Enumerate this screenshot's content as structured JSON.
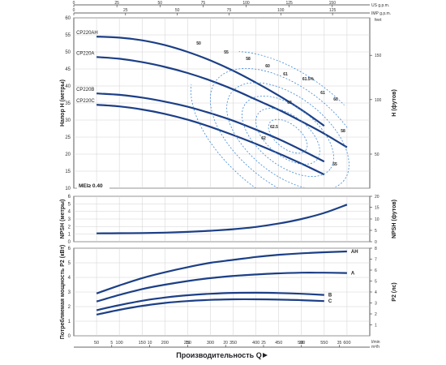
{
  "chart_data": {
    "type": "line",
    "x_axis": {
      "label": "Производительность Q",
      "unit_lmin": "l/min",
      "unit_m3h": "m³/h",
      "unit_usgpm": "US g.p.m.",
      "unit_impgpm": "IMP g.p.m.",
      "ticks_lmin": [
        "50",
        "100",
        "150",
        "200",
        "250",
        "300",
        "350",
        "400",
        "450",
        "500",
        "550",
        "600"
      ],
      "ticks_m3h": [
        "5",
        "10",
        "15",
        "20",
        "25",
        "30",
        "35"
      ],
      "ticks_usgpm": [
        "0",
        "25",
        "50",
        "75",
        "100",
        "125",
        "150"
      ],
      "ticks_impgpm": [
        "0",
        "25",
        "50",
        "75",
        "100",
        "125"
      ],
      "xlim": [
        0,
        650
      ]
    },
    "head": {
      "ylabel": "Напор H (метры)",
      "ylabel_right": "H (футов)",
      "unit_feet": "feet",
      "ylim": [
        10,
        60
      ],
      "ticks": [
        "10",
        "15",
        "20",
        "25",
        "30",
        "35",
        "40",
        "45",
        "50",
        "55",
        "60"
      ],
      "ticks_feet": [
        "50",
        "100",
        "150"
      ],
      "mei_label": "MEI≥ 0.40",
      "series": [
        {
          "name": "CP220AH",
          "x": [
            50,
            100,
            150,
            200,
            250,
            300,
            350,
            400,
            450,
            500,
            550
          ],
          "values": [
            54.5,
            54.2,
            53.4,
            52.0,
            50.0,
            47.5,
            44.5,
            41.0,
            37.2,
            33.0,
            28.3
          ]
        },
        {
          "name": "CP220A",
          "x": [
            50,
            100,
            150,
            200,
            250,
            300,
            350,
            400,
            450,
            500,
            550,
            600
          ],
          "values": [
            48.5,
            48.0,
            47.0,
            45.6,
            43.8,
            41.6,
            39.0,
            36.0,
            33.0,
            29.6,
            26.0,
            22.0
          ]
        },
        {
          "name": "CP220B",
          "x": [
            50,
            100,
            150,
            200,
            250,
            300,
            350,
            400,
            450,
            500,
            550
          ],
          "values": [
            37.8,
            37.4,
            36.6,
            35.4,
            33.9,
            32.0,
            29.8,
            27.2,
            24.4,
            21.2,
            17.8
          ]
        },
        {
          "name": "CP220C",
          "x": [
            50,
            100,
            150,
            200,
            250,
            300,
            350,
            400,
            450,
            500,
            550
          ],
          "values": [
            34.5,
            34.0,
            33.1,
            31.8,
            30.1,
            28.0,
            25.6,
            23.0,
            20.2,
            17.2,
            14.0
          ]
        }
      ],
      "efficiency_labels": [
        "50",
        "55",
        "58",
        "60",
        "61",
        "61.5%",
        "61",
        "60",
        "63",
        "62.5",
        "62",
        "58",
        "55"
      ]
    },
    "npsh": {
      "ylabel": "NPSH (метры)",
      "ylabel_right": "NPSH (футов)",
      "ylim": [
        0,
        6
      ],
      "ticks": [
        "0",
        "1",
        "2",
        "3",
        "4",
        "5",
        "6"
      ],
      "ticks_feet": [
        "0",
        "5",
        "10",
        "15",
        "20"
      ],
      "series": [
        {
          "name": "",
          "x": [
            50,
            100,
            150,
            200,
            250,
            300,
            350,
            400,
            450,
            500,
            550,
            600
          ],
          "values": [
            1.1,
            1.12,
            1.15,
            1.2,
            1.3,
            1.45,
            1.65,
            1.95,
            2.4,
            3.0,
            3.8,
            4.9
          ]
        }
      ]
    },
    "power": {
      "ylabel": "Потребляемая мощность P2 (кВт)",
      "ylabel_right": "P2 (лс)",
      "ylim": [
        0,
        6
      ],
      "ticks": [
        "0",
        "1",
        "2",
        "3",
        "4",
        "5",
        "6"
      ],
      "ticks_hp": [
        "1",
        "2",
        "3",
        "4",
        "5",
        "6",
        "7",
        "8"
      ],
      "series": [
        {
          "name": "AH",
          "x": [
            50,
            100,
            150,
            200,
            250,
            300,
            350,
            400,
            450,
            500,
            550,
            600
          ],
          "values": [
            2.9,
            3.45,
            3.95,
            4.35,
            4.7,
            5.0,
            5.2,
            5.4,
            5.55,
            5.65,
            5.72,
            5.78
          ]
        },
        {
          "name": "A",
          "x": [
            50,
            100,
            150,
            200,
            250,
            300,
            350,
            400,
            450,
            500,
            550,
            600
          ],
          "values": [
            2.35,
            2.8,
            3.2,
            3.5,
            3.75,
            3.95,
            4.1,
            4.2,
            4.28,
            4.32,
            4.32,
            4.3
          ]
        },
        {
          "name": "B",
          "x": [
            50,
            100,
            150,
            200,
            250,
            300,
            350,
            400,
            450,
            500,
            550
          ],
          "values": [
            1.75,
            2.1,
            2.4,
            2.62,
            2.78,
            2.88,
            2.94,
            2.95,
            2.93,
            2.88,
            2.8
          ]
        },
        {
          "name": "C",
          "x": [
            50,
            100,
            150,
            200,
            250,
            300,
            350,
            400,
            450,
            500,
            550
          ],
          "values": [
            1.45,
            1.78,
            2.05,
            2.25,
            2.38,
            2.46,
            2.5,
            2.5,
            2.48,
            2.44,
            2.38
          ]
        }
      ]
    },
    "colors": {
      "curve": "#1c3f86",
      "dashed": "#3f88d8",
      "grid": "#d0d0d0",
      "axis": "#333333"
    }
  }
}
